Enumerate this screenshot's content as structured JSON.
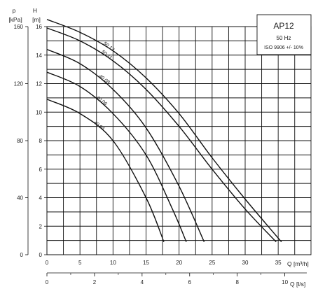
{
  "legend_box": {
    "model": "AP12",
    "frequency": "50 Hz",
    "tolerance": "ISO 9906 +/- 10%"
  },
  "axes": {
    "p_symbol": "p",
    "p_unit": "[kPa]",
    "h_symbol": "H",
    "h_unit": "[m]",
    "q_m3h_label": "Q [m³/h]",
    "q_ls_label": "Q [l/s]"
  },
  "chart_data": {
    "type": "line",
    "title": "AP12",
    "xlabel": "Q [m³/h]",
    "ylabel": "H [m]",
    "xlim": [
      0,
      35
    ],
    "ylim": [
      0,
      16
    ],
    "grid": true,
    "x_ticks": [
      0,
      5,
      10,
      15,
      20,
      25,
      30,
      35
    ],
    "y_ticks": [
      0,
      2,
      4,
      6,
      8,
      10,
      12,
      14,
      16
    ],
    "secondary_y": {
      "label": "p [kPa]",
      "ticks": [
        0,
        40,
        80,
        120,
        160
      ]
    },
    "secondary_x": {
      "label": "Q [l/s]",
      "ticks": [
        0,
        2,
        4,
        6,
        8,
        10
      ],
      "xlim": [
        0,
        10
      ]
    },
    "series": [
      {
        "name": "50.13",
        "x": [
          0,
          5,
          10,
          15,
          20,
          25,
          30,
          35.5
        ],
        "y": [
          16.5,
          15.6,
          14.3,
          12.4,
          9.9,
          6.8,
          3.9,
          0.9
        ]
      },
      {
        "name": "50.11",
        "x": [
          0,
          5,
          10,
          15,
          20,
          25,
          30,
          34.7
        ],
        "y": [
          15.9,
          15.0,
          13.6,
          11.6,
          9.0,
          6.0,
          3.2,
          0.9
        ]
      },
      {
        "name": "40.08",
        "x": [
          0,
          5,
          10,
          15,
          20,
          23.8
        ],
        "y": [
          14.4,
          13.4,
          11.6,
          8.9,
          4.8,
          0.9
        ]
      },
      {
        "name": "40.06",
        "x": [
          0,
          5,
          10,
          15,
          19,
          21.1
        ],
        "y": [
          12.8,
          11.8,
          9.9,
          7.0,
          3.2,
          0.9
        ]
      },
      {
        "name": "40.04",
        "x": [
          0,
          5,
          10,
          15,
          17.7
        ],
        "y": [
          10.9,
          9.9,
          8.0,
          4.0,
          0.9
        ]
      }
    ]
  }
}
